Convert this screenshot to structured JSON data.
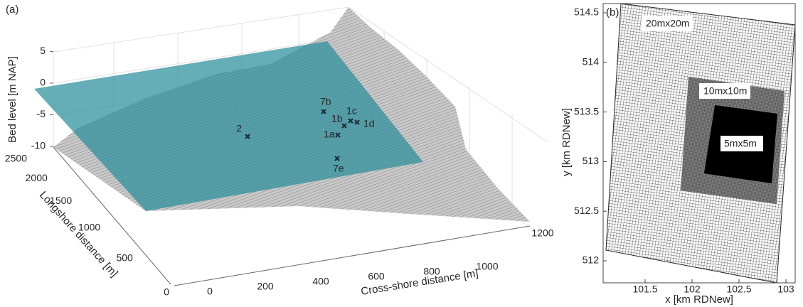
{
  "panel_a": {
    "label": "(a)",
    "z_axis_label": "Bed level [m NAP]",
    "y_axis_label": "Longshore distance [m]",
    "x_axis_label": "Cross-shore distance [m]",
    "z_ticks": [
      5,
      0,
      -5,
      -10
    ],
    "y_ticks": [
      2500,
      2000,
      1500,
      1000,
      500,
      0
    ],
    "x_ticks": [
      0,
      200,
      400,
      600,
      800,
      1000,
      1200
    ],
    "stations": [
      {
        "label": "2"
      },
      {
        "label": "7b"
      },
      {
        "label": "1b"
      },
      {
        "label": "1c"
      },
      {
        "label": "1d"
      },
      {
        "label": "1a"
      },
      {
        "label": "7e"
      }
    ]
  },
  "panel_b": {
    "label": "(b)",
    "x_axis_label": "x [km RDNew]",
    "y_axis_label": "y [km RDNew]",
    "x_ticks": [
      101.5,
      102,
      102.5,
      103
    ],
    "y_ticks": [
      512,
      512.5,
      513,
      513.5,
      514,
      514.5
    ],
    "grids": [
      {
        "label": "20mx20m"
      },
      {
        "label": "10mx10m"
      },
      {
        "label": "5mx5m"
      }
    ]
  }
}
